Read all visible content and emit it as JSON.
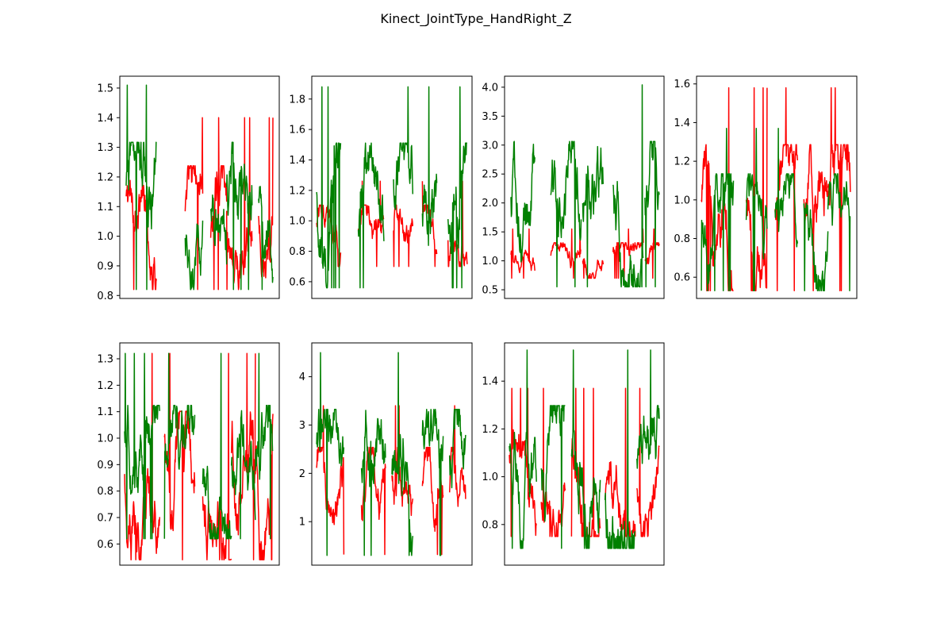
{
  "figure": {
    "title": "Kinect_JointType_HandRight_Z"
  },
  "colors": {
    "series_a": "#ff0000",
    "series_b": "#008000",
    "axes": "#000000",
    "background": "#ffffff"
  },
  "chart_data": [
    {
      "type": "line",
      "title": "",
      "xlabel": "",
      "ylabel": "",
      "x_ticks_visible": false,
      "grid": false,
      "ylim": [
        0.79,
        1.54
      ],
      "y_ticks": [
        "0.8",
        "0.9",
        "1.0",
        "1.1",
        "1.2",
        "1.3",
        "1.4",
        "1.5"
      ],
      "segments": [
        [
          0.04,
          0.23
        ],
        [
          0.41,
          0.52
        ],
        [
          0.57,
          0.67
        ],
        [
          0.67,
          0.83
        ],
        [
          0.87,
          0.96
        ]
      ],
      "series": [
        {
          "color": "red",
          "range": [
            0.82,
            1.4
          ]
        },
        {
          "color": "green",
          "range": [
            0.82,
            1.51
          ]
        }
      ]
    },
    {
      "type": "line",
      "title": "",
      "xlabel": "",
      "ylabel": "",
      "x_ticks_visible": false,
      "grid": false,
      "ylim": [
        0.49,
        1.95
      ],
      "y_ticks": [
        "0.6",
        "0.8",
        "1.0",
        "1.2",
        "1.4",
        "1.6",
        "1.8"
      ],
      "segments": [
        [
          0.03,
          0.18
        ],
        [
          0.29,
          0.45
        ],
        [
          0.51,
          0.63
        ],
        [
          0.69,
          0.78
        ],
        [
          0.85,
          0.97
        ]
      ],
      "series": [
        {
          "color": "red",
          "range": [
            0.7,
            1.26
          ]
        },
        {
          "color": "green",
          "range": [
            0.56,
            1.88
          ]
        }
      ]
    },
    {
      "type": "line",
      "title": "",
      "xlabel": "",
      "ylabel": "",
      "x_ticks_visible": false,
      "grid": false,
      "ylim": [
        0.35,
        4.19
      ],
      "y_ticks": [
        "0.5",
        "1.0",
        "1.5",
        "2.0",
        "2.5",
        "3.0",
        "3.5",
        "4.0"
      ],
      "segments": [
        [
          0.04,
          0.19
        ],
        [
          0.29,
          0.48
        ],
        [
          0.49,
          0.62
        ],
        [
          0.68,
          0.87
        ],
        [
          0.88,
          0.97
        ]
      ],
      "series": [
        {
          "color": "red",
          "range": [
            0.7,
            1.55
          ]
        },
        {
          "color": "green",
          "range": [
            0.55,
            4.04
          ]
        }
      ]
    },
    {
      "type": "line",
      "title": "",
      "xlabel": "",
      "ylabel": "",
      "x_ticks_visible": false,
      "grid": false,
      "ylim": [
        0.49,
        1.64
      ],
      "y_ticks": [
        "0.6",
        "0.8",
        "1.0",
        "1.2",
        "1.4",
        "1.6"
      ],
      "segments": [
        [
          0.03,
          0.23
        ],
        [
          0.31,
          0.44
        ],
        [
          0.49,
          0.63
        ],
        [
          0.67,
          0.82
        ],
        [
          0.82,
          0.96
        ]
      ],
      "series": [
        {
          "color": "red",
          "range": [
            0.53,
            1.58
          ]
        },
        {
          "color": "green",
          "range": [
            0.53,
            1.37
          ]
        }
      ]
    },
    {
      "type": "line",
      "title": "",
      "xlabel": "",
      "ylabel": "",
      "x_ticks_visible": false,
      "grid": false,
      "ylim": [
        0.52,
        1.36
      ],
      "y_ticks": [
        "0.6",
        "0.7",
        "0.8",
        "0.9",
        "1.0",
        "1.1",
        "1.2",
        "1.3"
      ],
      "segments": [
        [
          0.03,
          0.25
        ],
        [
          0.28,
          0.47
        ],
        [
          0.52,
          0.7
        ],
        [
          0.7,
          0.85
        ],
        [
          0.85,
          0.96
        ]
      ],
      "series": [
        {
          "color": "red",
          "range": [
            0.54,
            1.32
          ]
        },
        {
          "color": "green",
          "range": [
            0.62,
            1.32
          ]
        }
      ]
    },
    {
      "type": "line",
      "title": "",
      "xlabel": "",
      "ylabel": "",
      "x_ticks_visible": false,
      "grid": false,
      "ylim": [
        0.1,
        4.7
      ],
      "y_ticks": [
        "1",
        "2",
        "3",
        "4"
      ],
      "segments": [
        [
          0.03,
          0.2
        ],
        [
          0.31,
          0.46
        ],
        [
          0.5,
          0.63
        ],
        [
          0.69,
          0.82
        ],
        [
          0.86,
          0.96
        ]
      ],
      "series": [
        {
          "color": "red",
          "range": [
            0.32,
            3.4
          ]
        },
        {
          "color": "green",
          "range": [
            0.3,
            4.5
          ]
        }
      ]
    },
    {
      "type": "line",
      "title": "",
      "xlabel": "",
      "ylabel": "",
      "x_ticks_visible": false,
      "grid": false,
      "ylim": [
        0.63,
        1.56
      ],
      "y_ticks": [
        "0.8",
        "1.0",
        "1.2",
        "1.4"
      ],
      "segments": [
        [
          0.03,
          0.2
        ],
        [
          0.23,
          0.38
        ],
        [
          0.42,
          0.6
        ],
        [
          0.63,
          0.82
        ],
        [
          0.83,
          0.97
        ]
      ],
      "series": [
        {
          "color": "red",
          "range": [
            0.75,
            1.37
          ]
        },
        {
          "color": "green",
          "range": [
            0.7,
            1.53
          ]
        }
      ]
    }
  ]
}
